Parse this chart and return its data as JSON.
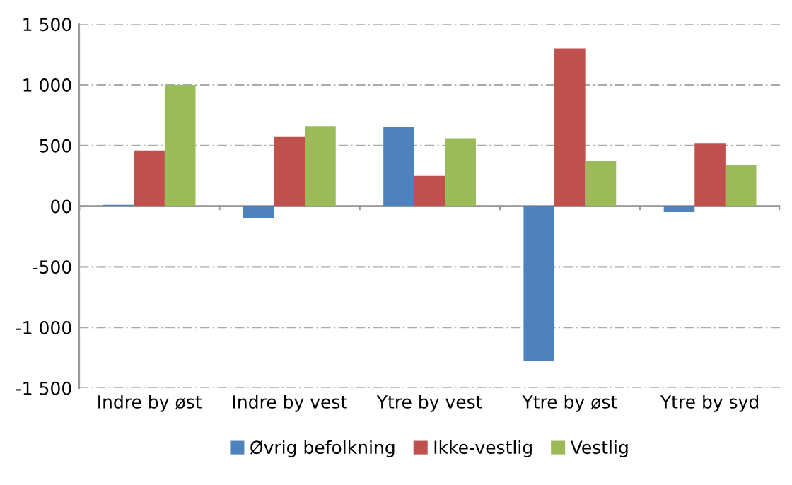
{
  "chart_data": {
    "type": "bar",
    "categories": [
      "Indre by øst",
      "Indre by vest",
      "Ytre by vest",
      "Ytre by øst",
      "Ytre by syd"
    ],
    "series": [
      {
        "name": "Øvrig befolkning",
        "color": "#4f81bd",
        "values": [
          10,
          -100,
          650,
          -1280,
          -50
        ]
      },
      {
        "name": "Ikke-vestlig",
        "color": "#c0504d",
        "values": [
          460,
          570,
          250,
          1300,
          520
        ]
      },
      {
        "name": "Vestlig",
        "color": "#9bbb59",
        "values": [
          1000,
          660,
          560,
          370,
          340
        ]
      }
    ],
    "ylim": [
      -1500,
      1500
    ],
    "yticks": [
      {
        "value": -1500,
        "label": "-1 500"
      },
      {
        "value": -1000,
        "label": "-1 000"
      },
      -500,
      {
        "value": 0,
        "label": "00"
      },
      500,
      {
        "value": 1000,
        "label": "1 000"
      },
      {
        "value": 1500,
        "label": "1 500"
      }
    ],
    "grid": "y",
    "legend": "bottom"
  }
}
